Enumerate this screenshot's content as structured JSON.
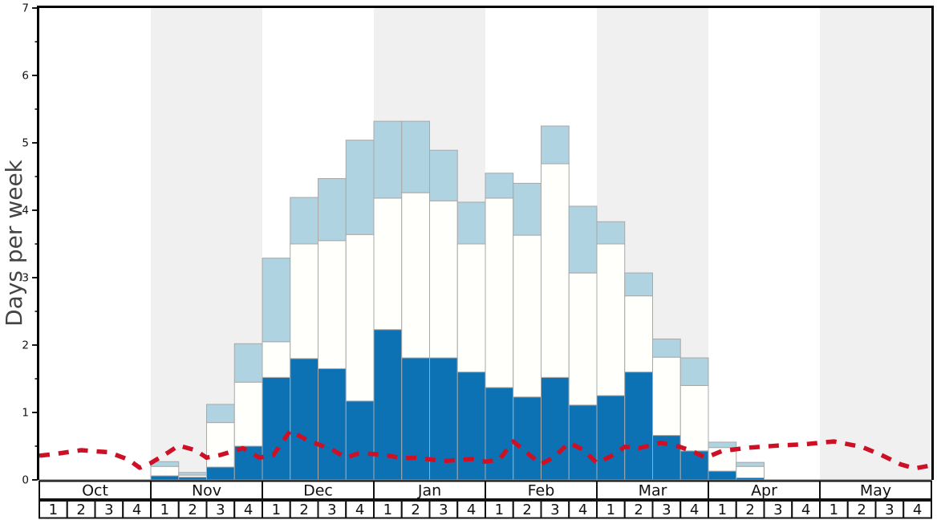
{
  "chart_data": {
    "type": "bar",
    "stacked": true,
    "title": "",
    "ylabel": "Days per week",
    "xlabel": "",
    "ylim": [
      0,
      7
    ],
    "y_major_ticks": [
      0,
      1,
      2,
      3,
      4,
      5,
      6,
      7
    ],
    "y_minor_tick_step": 0.5,
    "grid": false,
    "legend_position": "none",
    "months": [
      "Oct",
      "Nov",
      "Dec",
      "Jan",
      "Feb",
      "Mar",
      "Apr",
      "May"
    ],
    "weeks_per_month": [
      "1",
      "2",
      "3",
      "4"
    ],
    "shaded_months": [
      "Nov",
      "Jan",
      "Mar",
      "May"
    ],
    "weeks_total": 32,
    "series": [
      {
        "name": "dark_blue_segment",
        "color": "#0d72b4",
        "values": [
          0,
          0,
          0,
          0,
          0.06,
          0.04,
          0.19,
          0.5,
          1.52,
          1.8,
          1.65,
          1.17,
          2.23,
          1.81,
          1.81,
          1.6,
          1.37,
          1.23,
          1.52,
          1.11,
          1.25,
          1.6,
          0.66,
          0.43,
          0.13,
          0.03,
          0,
          0,
          0,
          0,
          0,
          0
        ]
      },
      {
        "name": "white_segment",
        "color": "#fffffb",
        "values": [
          0,
          0,
          0,
          0,
          0.14,
          0.03,
          0.66,
          0.95,
          0.53,
          1.7,
          1.9,
          2.47,
          1.95,
          2.45,
          2.33,
          1.9,
          2.81,
          2.4,
          3.17,
          1.96,
          2.25,
          1.13,
          1.16,
          0.97,
          0.35,
          0.17,
          0,
          0,
          0,
          0,
          0,
          0
        ]
      },
      {
        "name": "light_blue_segment",
        "color": "#b0d3e1",
        "values": [
          0,
          0,
          0,
          0,
          0.07,
          0.04,
          0.27,
          0.57,
          1.24,
          0.69,
          0.92,
          1.4,
          1.14,
          1.06,
          0.75,
          0.62,
          0.37,
          0.77,
          0.56,
          0.99,
          0.33,
          0.34,
          0.27,
          0.41,
          0.08,
          0.06,
          0,
          0,
          0,
          0,
          0,
          0
        ]
      }
    ],
    "line_series": {
      "name": "red_dashed_line",
      "color": "#cc1126",
      "dash": [
        13,
        11
      ],
      "points_week_value": [
        [
          0.0,
          0.36
        ],
        [
          0.5,
          0.38
        ],
        [
          1.5,
          0.44
        ],
        [
          2.5,
          0.41
        ],
        [
          3.2,
          0.3
        ],
        [
          3.6,
          0.18
        ],
        [
          4.0,
          0.25
        ],
        [
          4.6,
          0.4
        ],
        [
          5.0,
          0.51
        ],
        [
          5.6,
          0.44
        ],
        [
          6.0,
          0.33
        ],
        [
          6.5,
          0.37
        ],
        [
          7.3,
          0.47
        ],
        [
          7.9,
          0.33
        ],
        [
          8.4,
          0.37
        ],
        [
          9.0,
          0.73
        ],
        [
          9.6,
          0.59
        ],
        [
          10.5,
          0.45
        ],
        [
          11.0,
          0.33
        ],
        [
          11.5,
          0.4
        ],
        [
          12.4,
          0.37
        ],
        [
          13.0,
          0.32
        ],
        [
          13.5,
          0.33
        ],
        [
          14.5,
          0.28
        ],
        [
          15.5,
          0.31
        ],
        [
          16.0,
          0.27
        ],
        [
          16.5,
          0.3
        ],
        [
          17.0,
          0.57
        ],
        [
          17.5,
          0.4
        ],
        [
          18.0,
          0.23
        ],
        [
          18.5,
          0.35
        ],
        [
          19.0,
          0.55
        ],
        [
          19.5,
          0.45
        ],
        [
          20.0,
          0.25
        ],
        [
          20.5,
          0.35
        ],
        [
          21.0,
          0.49
        ],
        [
          21.5,
          0.47
        ],
        [
          22.3,
          0.55
        ],
        [
          22.9,
          0.5
        ],
        [
          23.4,
          0.43
        ],
        [
          23.9,
          0.33
        ],
        [
          24.5,
          0.43
        ],
        [
          25.5,
          0.48
        ],
        [
          26.5,
          0.51
        ],
        [
          27.5,
          0.53
        ],
        [
          28.5,
          0.57
        ],
        [
          29.5,
          0.49
        ],
        [
          30.2,
          0.37
        ],
        [
          30.9,
          0.23
        ],
        [
          31.4,
          0.17
        ],
        [
          31.8,
          0.2
        ],
        [
          32.0,
          0.22
        ]
      ]
    },
    "colors": {
      "shaded_band": "#f0f0f0",
      "bar_border": "#a8a8a8",
      "plot_border": "#000000",
      "baseline": "#888888",
      "table_border": "#111111",
      "axis_label": "#444444",
      "tick_label": "#111111"
    }
  }
}
